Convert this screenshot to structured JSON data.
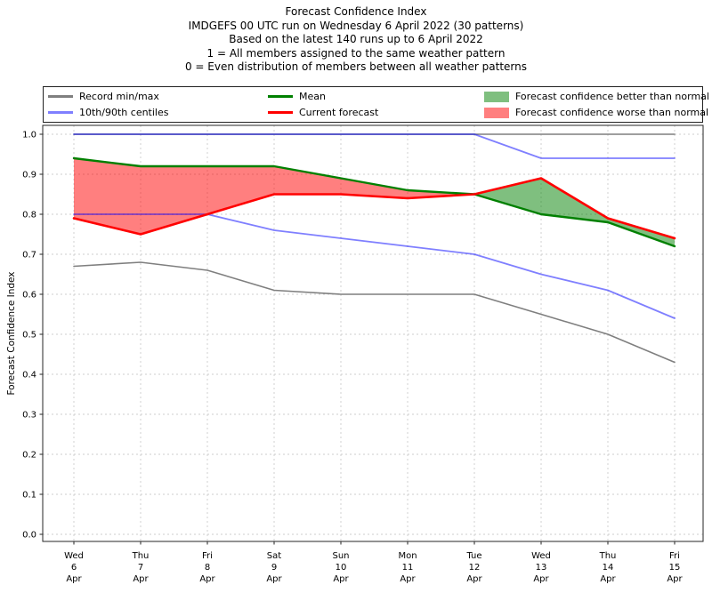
{
  "title_lines": [
    "Forecast Confidence Index",
    "IMDGEFS 00 UTC run on Wednesday 6 April 2022 (30 patterns)",
    "Based on the latest 140 runs up to 6 April 2022",
    "1 = All members assigned to the same weather pattern",
    "0 = Even distribution of members between all weather patterns"
  ],
  "legend": {
    "items": [
      {
        "label": "Record min/max",
        "type": "line",
        "color": "#7f7f7f"
      },
      {
        "label": "10th/90th centiles",
        "type": "line",
        "color": "rgba(0,0,255,0.5)"
      },
      {
        "label": "Mean",
        "type": "line",
        "color": "#008000"
      },
      {
        "label": "Current forecast",
        "type": "line",
        "color": "#ff0000"
      },
      {
        "label": "Forecast confidence better than normal",
        "type": "patch",
        "color": "rgba(0,128,0,0.5)"
      },
      {
        "label": "Forecast confidence worse than normal",
        "type": "patch",
        "color": "rgba(255,0,0,0.5)"
      }
    ]
  },
  "chart_data": {
    "type": "line",
    "title": "Forecast Confidence Index",
    "ylabel": "Forecast Confidence Index",
    "ylim": [
      0.0,
      1.0
    ],
    "grid": "dashed, both axes",
    "legend_position": "top, 3 columns",
    "grid_color": "#cccccc",
    "x_tick_labels": [
      [
        "Wed",
        "6",
        "Apr"
      ],
      [
        "Thu",
        "7",
        "Apr"
      ],
      [
        "Fri",
        "8",
        "Apr"
      ],
      [
        "Sat",
        "9",
        "Apr"
      ],
      [
        "Sun",
        "10",
        "Apr"
      ],
      [
        "Mon",
        "11",
        "Apr"
      ],
      [
        "Tue",
        "12",
        "Apr"
      ],
      [
        "Wed",
        "13",
        "Apr"
      ],
      [
        "Thu",
        "14",
        "Apr"
      ],
      [
        "Fri",
        "15",
        "Apr"
      ]
    ],
    "y_tick_values": [
      0.0,
      0.1,
      0.2,
      0.3,
      0.4,
      0.5,
      0.6,
      0.7,
      0.8,
      0.9,
      1.0
    ],
    "y_tick_labels": [
      "0.0",
      "0.1",
      "0.2",
      "0.3",
      "0.4",
      "0.5",
      "0.6",
      "0.7",
      "0.8",
      "0.9",
      "1.0"
    ],
    "series": [
      {
        "name": "Record max",
        "color": "#7f7f7f",
        "width": 1.6,
        "values": [
          1.0,
          1.0,
          1.0,
          1.0,
          1.0,
          1.0,
          1.0,
          1.0,
          1.0,
          1.0
        ]
      },
      {
        "name": "Record min",
        "color": "#7f7f7f",
        "width": 1.6,
        "values": [
          0.67,
          0.68,
          0.66,
          0.61,
          0.6,
          0.6,
          0.6,
          0.55,
          0.5,
          0.43
        ]
      },
      {
        "name": "90th centile",
        "color": "rgba(0,0,255,0.5)",
        "width": 1.8,
        "values": [
          1.0,
          1.0,
          1.0,
          1.0,
          1.0,
          1.0,
          1.0,
          0.94,
          0.94,
          0.94
        ]
      },
      {
        "name": "10th centile",
        "color": "rgba(0,0,255,0.5)",
        "width": 1.8,
        "values": [
          0.8,
          0.8,
          0.8,
          0.76,
          0.74,
          0.72,
          0.7,
          0.65,
          0.61,
          0.54
        ]
      },
      {
        "name": "Mean",
        "color": "#008000",
        "width": 2.4,
        "values": [
          0.94,
          0.92,
          0.92,
          0.92,
          0.89,
          0.86,
          0.85,
          0.8,
          0.78,
          0.72
        ]
      },
      {
        "name": "Current forecast",
        "color": "#ff0000",
        "width": 2.6,
        "values": [
          0.79,
          0.75,
          0.8,
          0.85,
          0.85,
          0.84,
          0.85,
          0.89,
          0.79,
          0.74
        ]
      }
    ],
    "fills": [
      {
        "data_name": "fill-worse-than-normal",
        "upper": "Mean",
        "lower": "Current forecast",
        "from": 0,
        "to": 6,
        "color": "rgba(255,0,0,0.5)"
      },
      {
        "data_name": "fill-better-than-normal",
        "upper": "Current forecast",
        "lower": "Mean",
        "from": 6,
        "to": 9,
        "color": "rgba(0,128,0,0.5)"
      }
    ]
  }
}
